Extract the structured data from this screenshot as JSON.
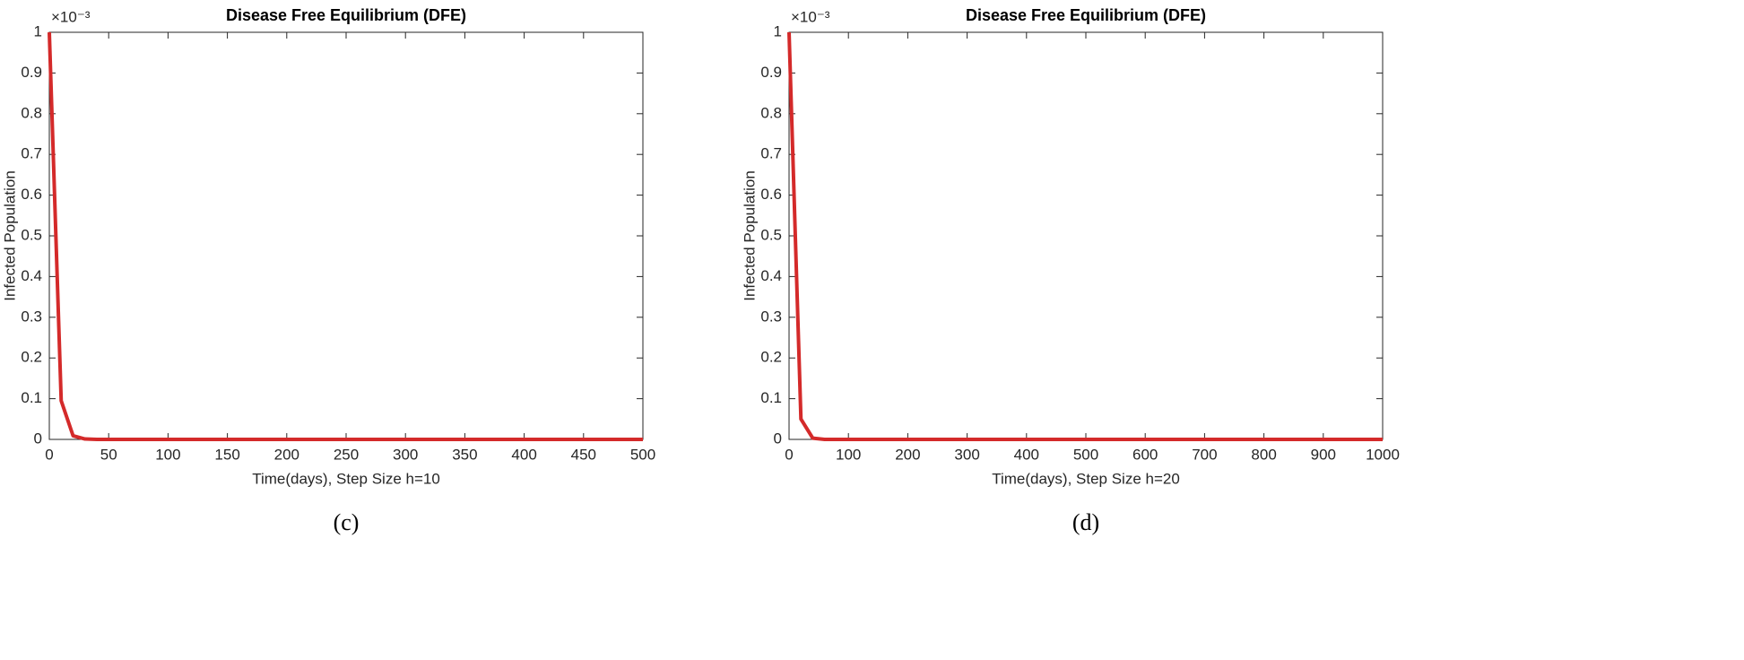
{
  "chart_data": [
    {
      "type": "line",
      "title": "Disease Free Equilibrium (DFE)",
      "x_label": "Time(days), Step Size h=10",
      "y_label": "Infected Population",
      "y_scale_label": "×10⁻³",
      "caption": "(c)",
      "x": [
        0,
        10,
        20,
        30,
        40,
        500
      ],
      "series": [
        {
          "name": "Infected",
          "color": "#d42a2a",
          "values": [
            1,
            0.095,
            0.009,
            0.001,
            0,
            0
          ]
        }
      ],
      "xlim": [
        0,
        500
      ],
      "xticks": [
        0,
        50,
        100,
        150,
        200,
        250,
        300,
        350,
        400,
        450,
        500
      ],
      "ylim": [
        0,
        1
      ],
      "yticks": [
        0,
        0.1,
        0.2,
        0.3,
        0.4,
        0.5,
        0.6,
        0.7,
        0.8,
        0.9,
        1
      ]
    },
    {
      "type": "line",
      "title": "Disease Free Equilibrium (DFE)",
      "x_label": "Time(days), Step Size h=20",
      "y_label": "Infected Population",
      "y_scale_label": "×10⁻³",
      "caption": "(d)",
      "x": [
        0,
        20,
        40,
        60,
        1000
      ],
      "series": [
        {
          "name": "Infected",
          "color": "#d42a2a",
          "values": [
            1,
            0.05,
            0.003,
            0,
            0
          ]
        }
      ],
      "xlim": [
        0,
        1000
      ],
      "xticks": [
        0,
        100,
        200,
        300,
        400,
        500,
        600,
        700,
        800,
        900,
        1000
      ],
      "ylim": [
        0,
        1
      ],
      "yticks": [
        0,
        0.1,
        0.2,
        0.3,
        0.4,
        0.5,
        0.6,
        0.7,
        0.8,
        0.9,
        1
      ]
    }
  ]
}
